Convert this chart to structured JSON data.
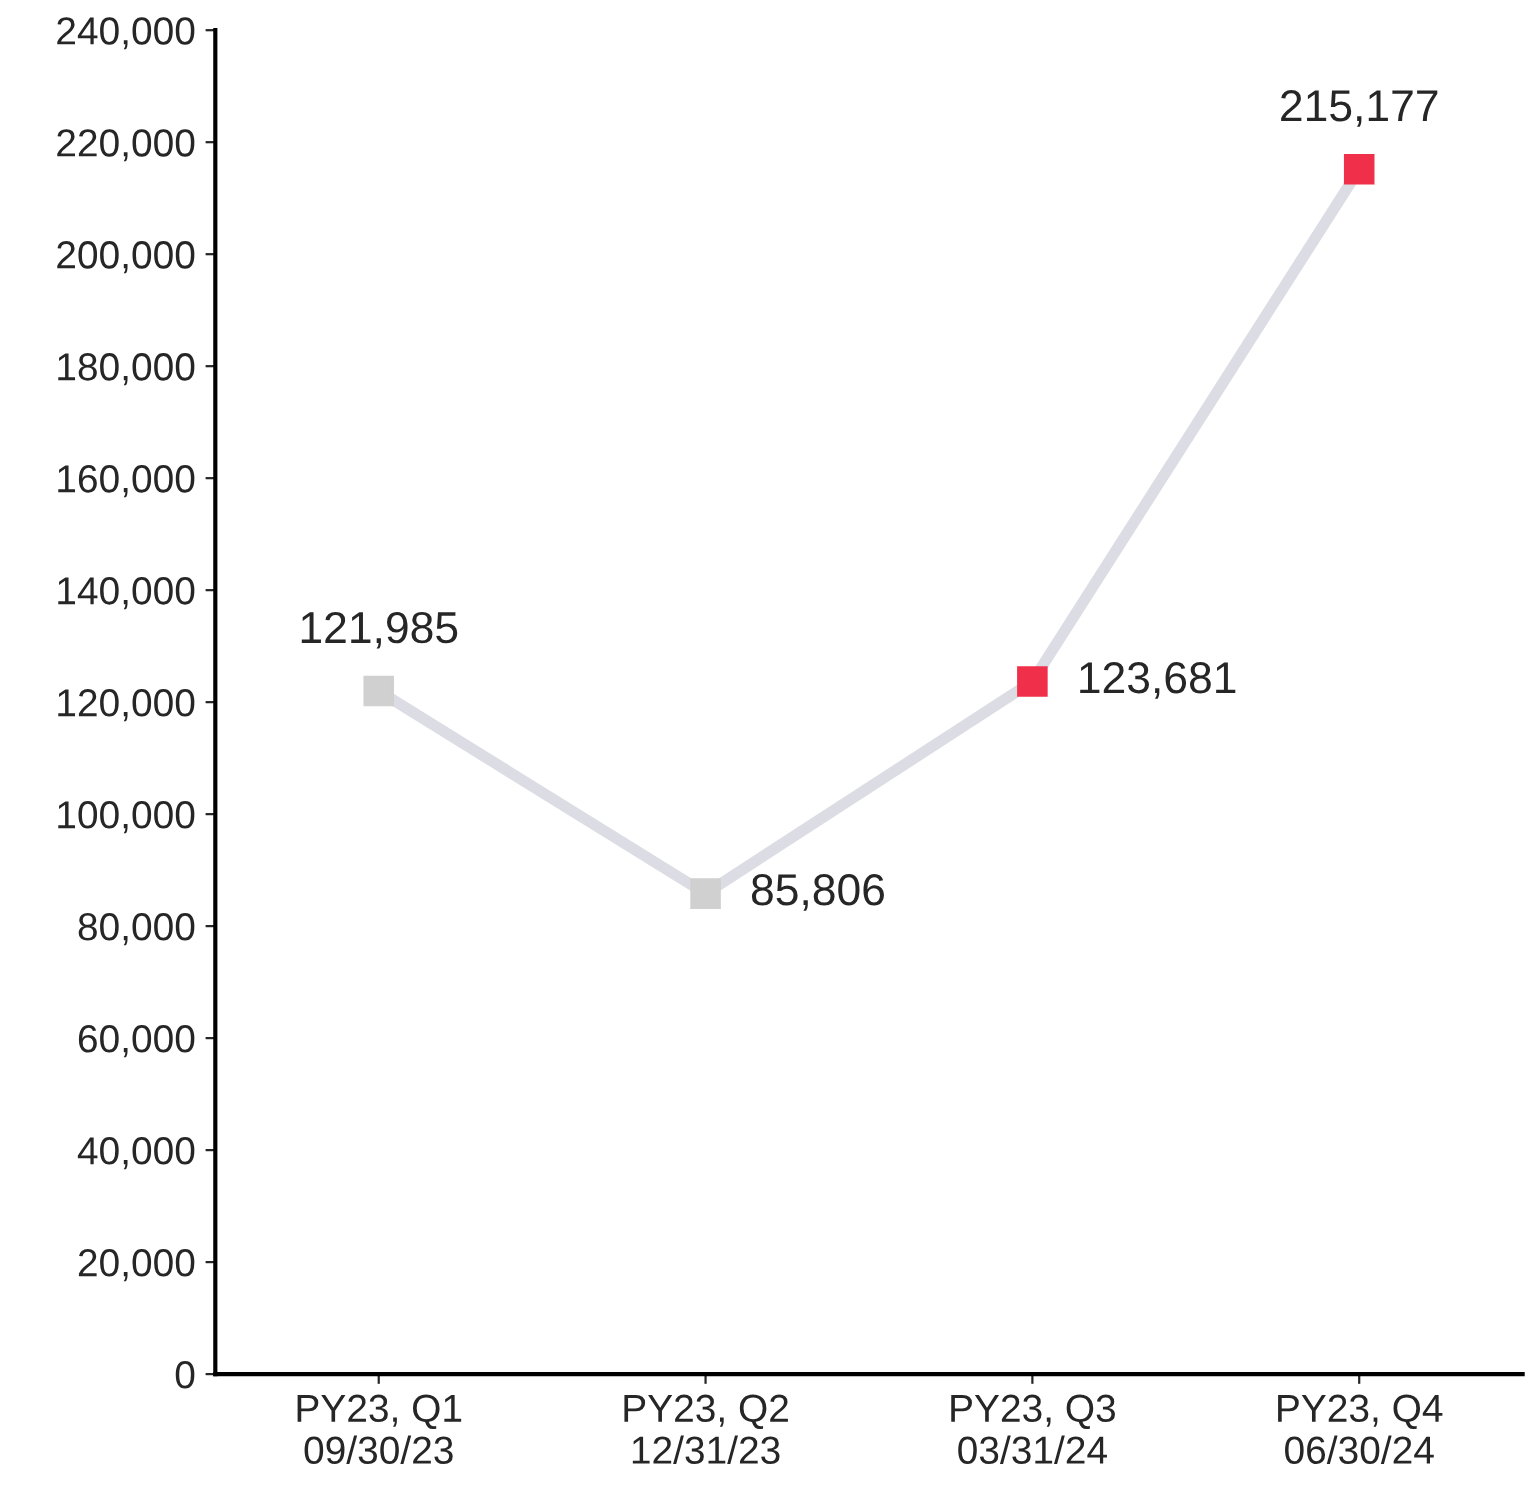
{
  "chart_data": {
    "type": "line",
    "categories": [
      "PY23, Q1\n09/30/23",
      "PY23, Q2\n12/31/23",
      "PY23, Q3\n03/31/24",
      "PY23, Q4\n06/30/24"
    ],
    "series": [
      {
        "color": "#dcdce4",
        "colors": [
          "#d0d0d0",
          "#d0d0d0",
          "#f0304a",
          "#f0304a"
        ],
        "values": [
          121985,
          85806,
          123681,
          215177
        ],
        "value_labels": [
          "121,985",
          "85,806",
          "123,681",
          "215,177"
        ]
      }
    ],
    "ylim": [
      0,
      240000
    ],
    "yticks": [
      {
        "value": 0,
        "label": "0"
      },
      {
        "value": 20000,
        "label": "20,000"
      },
      {
        "value": 40000,
        "label": "40,000"
      },
      {
        "value": 60000,
        "label": "60,000"
      },
      {
        "value": 80000,
        "label": "80,000"
      },
      {
        "value": 100000,
        "label": "100,000"
      },
      {
        "value": 120000,
        "label": "120,000"
      },
      {
        "value": 140000,
        "label": "140,000"
      },
      {
        "value": 160000,
        "label": "160,000"
      },
      {
        "value": 180000,
        "label": "180,000"
      },
      {
        "value": 200000,
        "label": "200,000"
      },
      {
        "value": 220000,
        "label": "220,000"
      },
      {
        "value": 240000,
        "label": "240,000"
      }
    ],
    "marker": "square",
    "grid": false,
    "legend": false
  }
}
